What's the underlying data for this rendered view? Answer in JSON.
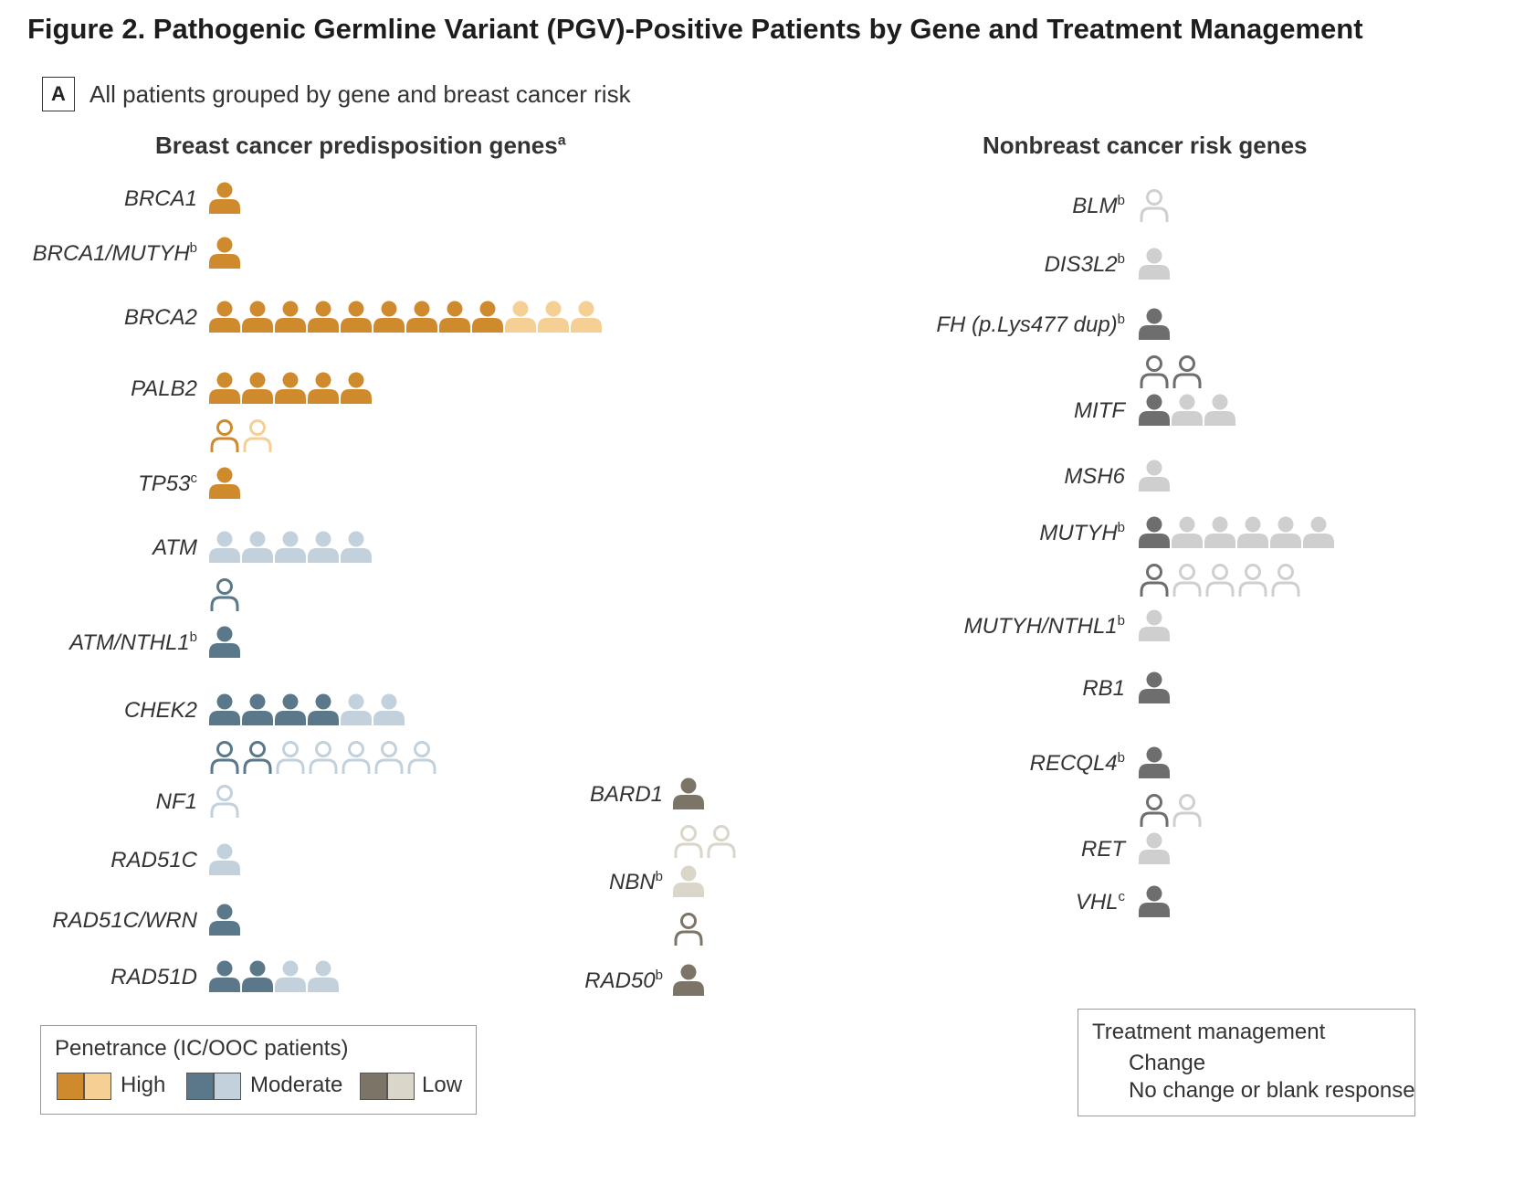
{
  "figure": {
    "title": "Figure 2.  Pathogenic Germline Variant (PGV)-Positive Patients by Gene and Treatment Management",
    "panel_letter": "A",
    "panel_title": "All patients grouped by gene and breast cancer risk"
  },
  "groups": {
    "breast": "Breast cancer predisposition genes",
    "breast_sup": "a",
    "nonbreast": "Nonbreast cancer risk genes"
  },
  "colors": {
    "high_ic": "#D08A2E",
    "high_ooc": "#F5CF94",
    "moderate_ic": "#5A7889",
    "moderate_ooc": "#C2D1DB",
    "low_ic": "#7D7468",
    "low_ooc": "#DBD6CA",
    "nonbreast_ic": "#6E6E6E",
    "nonbreast_ooc": "#CFCFCF"
  },
  "chart_data": {
    "type": "pictograph",
    "unit": "1 icon = 1 patient",
    "genes": [
      {
        "gene": "BRCA1",
        "sup": "",
        "group": "breast",
        "penetrance": "High",
        "change": {
          "IC": 1,
          "OOC": 0
        },
        "no_change": {
          "IC": 0,
          "OOC": 0
        }
      },
      {
        "gene": "BRCA1/MUTYH",
        "sup": "b",
        "group": "breast",
        "penetrance": "High",
        "change": {
          "IC": 1,
          "OOC": 0
        },
        "no_change": {
          "IC": 0,
          "OOC": 0
        }
      },
      {
        "gene": "BRCA2",
        "sup": "",
        "group": "breast",
        "penetrance": "High",
        "change": {
          "IC": 9,
          "OOC": 3
        },
        "no_change": {
          "IC": 0,
          "OOC": 0
        }
      },
      {
        "gene": "PALB2",
        "sup": "",
        "group": "breast",
        "penetrance": "High",
        "change": {
          "IC": 5,
          "OOC": 0
        },
        "no_change": {
          "IC": 1,
          "OOC": 1
        }
      },
      {
        "gene": "TP53",
        "sup": "c",
        "group": "breast",
        "penetrance": "High",
        "change": {
          "IC": 1,
          "OOC": 0
        },
        "no_change": {
          "IC": 0,
          "OOC": 0
        }
      },
      {
        "gene": "ATM",
        "sup": "",
        "group": "breast",
        "penetrance": "Moderate",
        "change": {
          "IC": 0,
          "OOC": 5
        },
        "no_change": {
          "IC": 1,
          "OOC": 0
        }
      },
      {
        "gene": "ATM/NTHL1",
        "sup": "b",
        "group": "breast",
        "penetrance": "Moderate",
        "change": {
          "IC": 1,
          "OOC": 0
        },
        "no_change": {
          "IC": 0,
          "OOC": 0
        }
      },
      {
        "gene": "CHEK2",
        "sup": "",
        "group": "breast",
        "penetrance": "Moderate",
        "change": {
          "IC": 4,
          "OOC": 2
        },
        "no_change": {
          "IC": 2,
          "OOC": 5
        }
      },
      {
        "gene": "NF1",
        "sup": "",
        "group": "breast",
        "penetrance": "Moderate",
        "change": {
          "IC": 0,
          "OOC": 0
        },
        "no_change": {
          "IC": 0,
          "OOC": 1
        }
      },
      {
        "gene": "RAD51C",
        "sup": "",
        "group": "breast",
        "penetrance": "Moderate",
        "change": {
          "IC": 0,
          "OOC": 1
        },
        "no_change": {
          "IC": 0,
          "OOC": 0
        }
      },
      {
        "gene": "RAD51C/WRN",
        "sup": "",
        "group": "breast",
        "penetrance": "Moderate",
        "change": {
          "IC": 1,
          "OOC": 0
        },
        "no_change": {
          "IC": 0,
          "OOC": 0
        }
      },
      {
        "gene": "RAD51D",
        "sup": "",
        "group": "breast",
        "penetrance": "Moderate",
        "change": {
          "IC": 2,
          "OOC": 2
        },
        "no_change": {
          "IC": 0,
          "OOC": 0
        }
      },
      {
        "gene": "BARD1",
        "sup": "",
        "group": "breast",
        "penetrance": "Low",
        "change": {
          "IC": 1,
          "OOC": 0
        },
        "no_change": {
          "IC": 0,
          "OOC": 2
        }
      },
      {
        "gene": "NBN",
        "sup": "b",
        "group": "breast",
        "penetrance": "Low",
        "change": {
          "IC": 0,
          "OOC": 1
        },
        "no_change": {
          "IC": 1,
          "OOC": 0
        }
      },
      {
        "gene": "RAD50",
        "sup": "b",
        "group": "breast",
        "penetrance": "Low",
        "change": {
          "IC": 1,
          "OOC": 0
        },
        "no_change": {
          "IC": 0,
          "OOC": 0
        }
      },
      {
        "gene": "BLM",
        "sup": "b",
        "group": "nonbreast",
        "change": {
          "IC": 0,
          "OOC": 0
        },
        "no_change": {
          "IC": 0,
          "OOC": 1
        }
      },
      {
        "gene": "DIS3L2",
        "sup": "b",
        "group": "nonbreast",
        "change": {
          "IC": 0,
          "OOC": 1
        },
        "no_change": {
          "IC": 0,
          "OOC": 0
        }
      },
      {
        "gene": "FH (p.Lys477 dup)",
        "sup": "b",
        "group": "nonbreast",
        "change": {
          "IC": 1,
          "OOC": 0
        },
        "no_change": {
          "IC": 2,
          "OOC": 0
        }
      },
      {
        "gene": "MITF",
        "sup": "",
        "group": "nonbreast",
        "change": {
          "IC": 1,
          "OOC": 2
        },
        "no_change": {
          "IC": 0,
          "OOC": 0
        }
      },
      {
        "gene": "MSH6",
        "sup": "",
        "group": "nonbreast",
        "change": {
          "IC": 0,
          "OOC": 1
        },
        "no_change": {
          "IC": 0,
          "OOC": 0
        }
      },
      {
        "gene": "MUTYH",
        "sup": "b",
        "group": "nonbreast",
        "change": {
          "IC": 1,
          "OOC": 5
        },
        "no_change": {
          "IC": 1,
          "OOC": 4
        }
      },
      {
        "gene": "MUTYH/NTHL1",
        "sup": "b",
        "group": "nonbreast",
        "change": {
          "IC": 0,
          "OOC": 1
        },
        "no_change": {
          "IC": 0,
          "OOC": 0
        }
      },
      {
        "gene": "RB1",
        "sup": "",
        "group": "nonbreast",
        "change": {
          "IC": 1,
          "OOC": 0
        },
        "no_change": {
          "IC": 0,
          "OOC": 0
        }
      },
      {
        "gene": "RECQL4",
        "sup": "b",
        "group": "nonbreast",
        "change": {
          "IC": 1,
          "OOC": 0
        },
        "no_change": {
          "IC": 1,
          "OOC": 1
        }
      },
      {
        "gene": "RET",
        "sup": "",
        "group": "nonbreast",
        "change": {
          "IC": 0,
          "OOC": 1
        },
        "no_change": {
          "IC": 0,
          "OOC": 0
        }
      },
      {
        "gene": "VHL",
        "sup": "c",
        "group": "nonbreast",
        "change": {
          "IC": 1,
          "OOC": 0
        },
        "no_change": {
          "IC": 0,
          "OOC": 0
        }
      }
    ],
    "legend_penetrance": {
      "title": "Penetrance (IC/OOC patients)",
      "items": [
        "High",
        "Moderate",
        "Low"
      ]
    },
    "legend_management": {
      "title": "Treatment management",
      "change": "Change",
      "no_change": "No change or blank response"
    }
  }
}
